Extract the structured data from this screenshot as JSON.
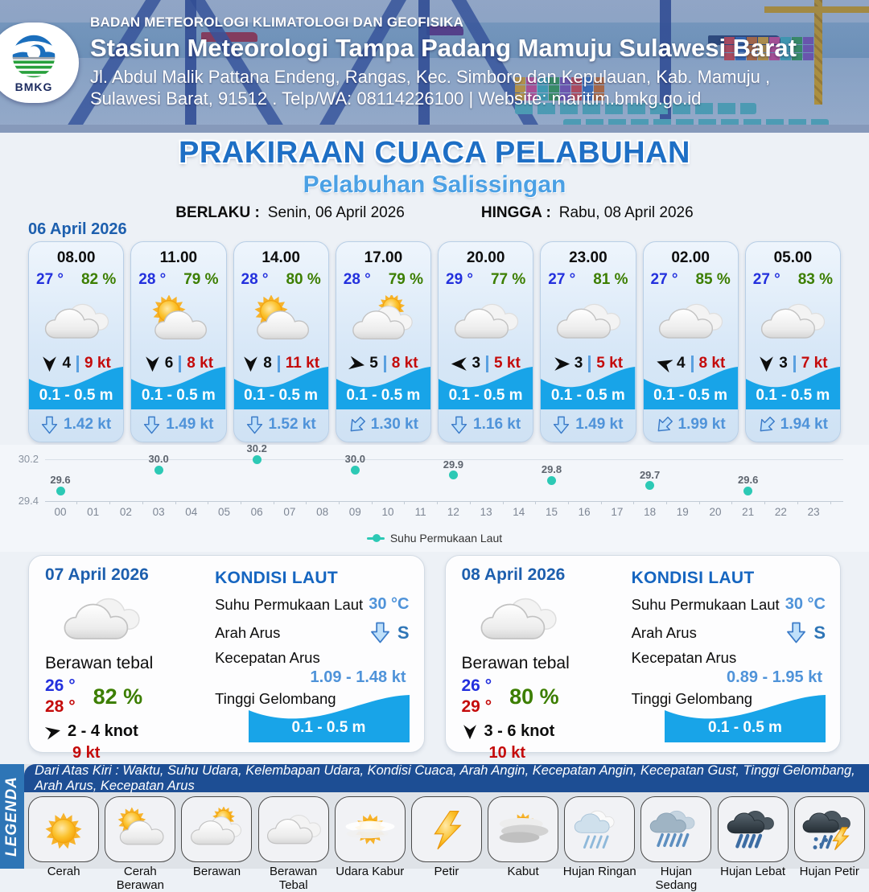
{
  "header": {
    "agency": "BADAN METEOROLOGI KLIMATOLOGI DAN GEOFISIKA",
    "station": "Stasiun Meteorologi Tampa Padang Mamuju Sulawesi Barat",
    "address1": "Jl. Abdul Malik Pattana Endeng, Rangas, Kec. Simboro dan Kepulauan, Kab. Mamuju ,",
    "address2": "Sulawesi Barat, 91512 . Telp/WA: 08114226100 | Website: maritim.bmkg.go.id",
    "logo_label": "BMKG"
  },
  "title": {
    "main": "PRAKIRAAN CUACA PELABUHAN",
    "subtitle": "Pelabuhan Salissingan",
    "berlaku_label": "BERLAKU :",
    "berlaku_value": "Senin, 06 April 2026",
    "hingga_label": "HINGGA :",
    "hingga_value": "Rabu, 08 April 2026"
  },
  "day1": {
    "date": "06 April 2026",
    "cards": [
      {
        "time": "08.00",
        "temp": "27 °",
        "humidity": "82 %",
        "icon": "cloudy",
        "wind_dir_deg": 180,
        "wind_speed": "4",
        "gust": "9 kt",
        "wave": "0.1 - 0.5 m",
        "current_dir_deg": 0,
        "current": "1.42 kt"
      },
      {
        "time": "11.00",
        "temp": "28 °",
        "humidity": "79 %",
        "icon": "partly-sunny",
        "wind_dir_deg": 180,
        "wind_speed": "6",
        "gust": "8 kt",
        "wave": "0.1 - 0.5 m",
        "current_dir_deg": 0,
        "current": "1.49 kt"
      },
      {
        "time": "14.00",
        "temp": "28 °",
        "humidity": "80 %",
        "icon": "partly-sunny",
        "wind_dir_deg": 180,
        "wind_speed": "8",
        "gust": "11 kt",
        "wave": "0.1 - 0.5 m",
        "current_dir_deg": 0,
        "current": "1.52 kt"
      },
      {
        "time": "17.00",
        "temp": "28 °",
        "humidity": "79 %",
        "icon": "mostly-cloudy",
        "wind_dir_deg": 100,
        "wind_speed": "5",
        "gust": "8 kt",
        "wave": "0.1 - 0.5 m",
        "current_dir_deg": 45,
        "current": "1.30 kt"
      },
      {
        "time": "20.00",
        "temp": "29 °",
        "humidity": "77 %",
        "icon": "cloudy",
        "wind_dir_deg": 270,
        "wind_speed": "3",
        "gust": "5 kt",
        "wave": "0.1 - 0.5 m",
        "current_dir_deg": 0,
        "current": "1.16 kt"
      },
      {
        "time": "23.00",
        "temp": "27 °",
        "humidity": "81 %",
        "icon": "cloudy",
        "wind_dir_deg": 90,
        "wind_speed": "3",
        "gust": "5 kt",
        "wave": "0.1 - 0.5 m",
        "current_dir_deg": 0,
        "current": "1.49 kt"
      },
      {
        "time": "02.00",
        "temp": "27 °",
        "humidity": "85 %",
        "icon": "cloudy",
        "wind_dir_deg": 288,
        "wind_speed": "4",
        "gust": "8 kt",
        "wave": "0.1 - 0.5 m",
        "current_dir_deg": 45,
        "current": "1.99 kt"
      },
      {
        "time": "05.00",
        "temp": "27 °",
        "humidity": "83 %",
        "icon": "cloudy",
        "wind_dir_deg": 180,
        "wind_speed": "3",
        "gust": "7 kt",
        "wave": "0.1 - 0.5 m",
        "current_dir_deg": 45,
        "current": "1.94 kt"
      }
    ]
  },
  "chart_data": {
    "type": "scatter",
    "series": [
      {
        "name": "Suhu Permukaan Laut",
        "x": [
          0,
          3,
          6,
          9,
          12,
          15,
          18,
          21
        ],
        "values": [
          29.6,
          30.0,
          30.2,
          30.0,
          29.9,
          29.8,
          29.7,
          29.6
        ]
      }
    ],
    "x_ticks": [
      "00",
      "01",
      "02",
      "03",
      "04",
      "05",
      "06",
      "07",
      "08",
      "09",
      "10",
      "11",
      "12",
      "13",
      "14",
      "15",
      "16",
      "17",
      "18",
      "19",
      "20",
      "21",
      "22",
      "23"
    ],
    "y_ticks": [
      "30.2",
      "29.4"
    ],
    "ylim": [
      29.4,
      30.2
    ],
    "grid": true,
    "legend_position": "bottom",
    "point_color": "#2cc9b5"
  },
  "day_cards": [
    {
      "date": "07 April 2026",
      "icon": "cloudy",
      "condition": "Berawan tebal",
      "temp_min": "26 °",
      "temp_max": "28 °",
      "humidity": "82 %",
      "wind_dir_deg": 78,
      "wind_range": "2 - 4 knot",
      "gust": "9 kt",
      "sea": {
        "title": "KONDISI LAUT",
        "sst_label": "Suhu Permukaan Laut",
        "sst_value": "30 °C",
        "dir_label": "Arah Arus",
        "dir_value": "S",
        "dir_deg": 0,
        "speed_label": "Kecepatan Arus",
        "speed_value": "1.09  - 1.48 kt",
        "wave_label": "Tinggi Gelombang",
        "wave_value": "0.1 - 0.5 m"
      }
    },
    {
      "date": "08 April 2026",
      "icon": "cloudy",
      "condition": "Berawan tebal",
      "temp_min": "26 °",
      "temp_max": "29 °",
      "humidity": "80 %",
      "wind_dir_deg": 180,
      "wind_range": "3 - 6 knot",
      "gust": "10 kt",
      "sea": {
        "title": "KONDISI LAUT",
        "sst_label": "Suhu Permukaan Laut",
        "sst_value": "30 °C",
        "dir_label": "Arah Arus",
        "dir_value": "S",
        "dir_deg": 0,
        "speed_label": "Kecepatan Arus",
        "speed_value": "0.89  - 1.95 kt",
        "wave_label": "Tinggi Gelombang",
        "wave_value": "0.1 - 0.5 m"
      }
    }
  ],
  "legend": {
    "title": "LEGENDA",
    "description": "Dari Atas Kiri : Waktu, Suhu Udara, Kelembapan Udara, Kondisi Cuaca, Arah Angin, Kecepatan Angin, Kecepatan Gust, Tinggi Gelombang, Arah Arus, Kecepatan Arus",
    "items": [
      {
        "label": "Cerah",
        "icon": "sunny"
      },
      {
        "label": "Cerah Berawan",
        "icon": "partly-sunny"
      },
      {
        "label": "Berawan",
        "icon": "mostly-cloudy"
      },
      {
        "label": "Berawan Tebal",
        "icon": "cloudy"
      },
      {
        "label": "Udara Kabur",
        "icon": "haze"
      },
      {
        "label": "Petir",
        "icon": "lightning"
      },
      {
        "label": "Kabut",
        "icon": "fog"
      },
      {
        "label": "Hujan Ringan",
        "icon": "light-rain"
      },
      {
        "label": "Hujan Sedang",
        "icon": "moderate-rain"
      },
      {
        "label": "Hujan Lebat",
        "icon": "heavy-rain"
      },
      {
        "label": "Hujan Petir",
        "icon": "thunderstorm"
      }
    ]
  },
  "colors": {
    "accent_blue": "#1e6fc5",
    "subtitle_blue": "#4ba0e4",
    "temp_blue": "#2330dd",
    "humidity_green": "#3c7e00",
    "gust_red": "#c40a0a",
    "wave_cyan": "#18a4e8",
    "current_blue": "#4f93d9",
    "chart_point_teal": "#2cc9b5",
    "legenda_bar_blue": "#2e75b6",
    "desc_bar_navy": "#1d4e94"
  }
}
